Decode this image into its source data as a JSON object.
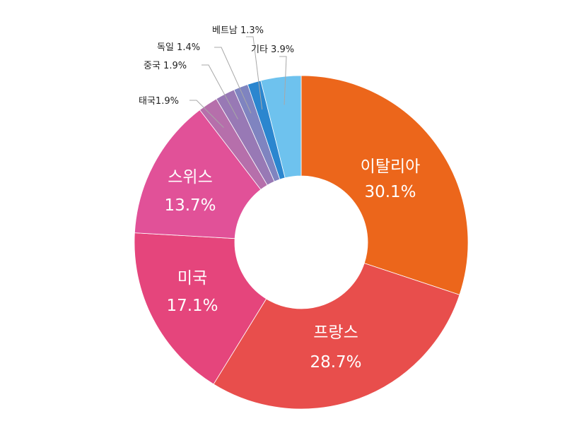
{
  "chart_data": {
    "type": "pie",
    "title": "",
    "categories": [
      "이탈리아",
      "프랑스",
      "미국",
      "스위스",
      "태국",
      "중국",
      "독일",
      "베트남",
      "기타"
    ],
    "values": [
      30.1,
      28.7,
      17.1,
      13.7,
      1.9,
      1.9,
      1.4,
      1.3,
      3.9
    ],
    "value_labels": [
      "30.1%",
      "28.7%",
      "17.1%",
      "13.7%",
      "1.9%",
      "1.9%",
      "1.4%",
      "1.3%",
      "3.9%"
    ],
    "outer_labels": [
      "태국1.9%",
      "중국 1.9%",
      "독일 1.4%",
      "베트남 1.3%",
      "기타 3.9%"
    ],
    "colors": [
      "#ec661b",
      "#e84e4c",
      "#e5457c",
      "#e15198",
      "#b66fab",
      "#9879b5",
      "#7f84c0",
      "#2b86cf",
      "#6ec2ee"
    ],
    "donut": true,
    "legend": "none"
  }
}
